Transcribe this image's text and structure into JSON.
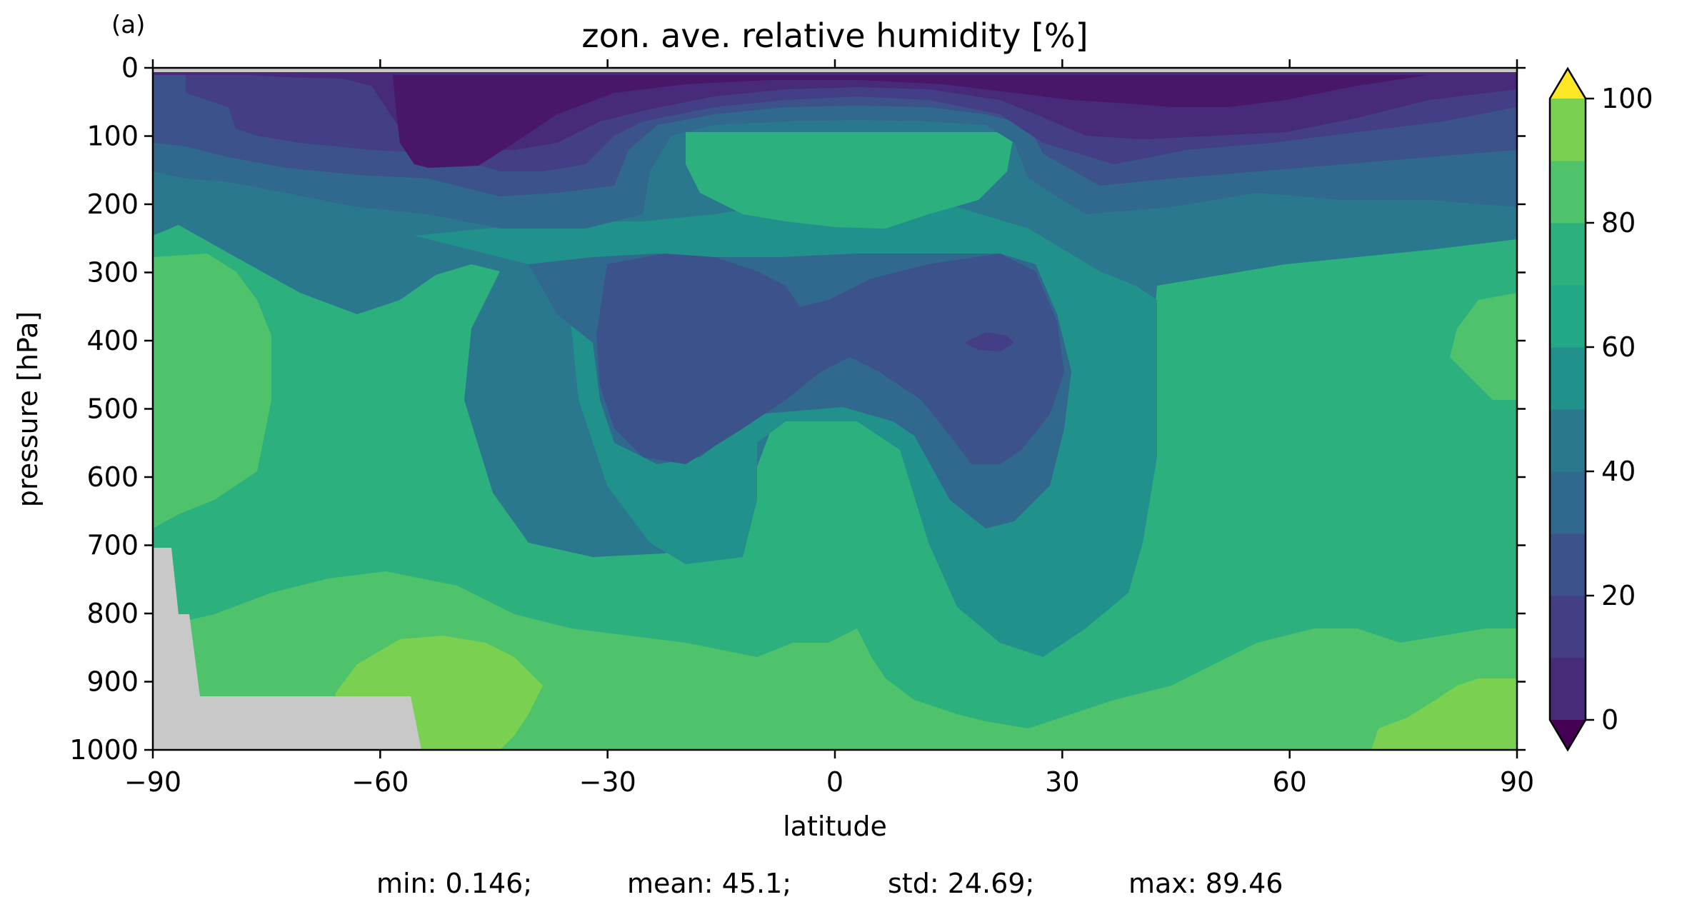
{
  "panel_label": "(a)",
  "chart_data": {
    "type": "heatmap",
    "title": "zon. ave. relative humidity [%]",
    "xlabel": "latitude",
    "ylabel": "pressure [hPa]",
    "xlim": [
      -90,
      90
    ],
    "ylim": [
      1000,
      0
    ],
    "x_ticks": [
      -90,
      -60,
      -30,
      0,
      30,
      60,
      90
    ],
    "x_tick_labels": [
      "−90",
      "−60",
      "−30",
      "0",
      "30",
      "60",
      "90"
    ],
    "y_ticks": [
      0,
      100,
      200,
      300,
      400,
      500,
      600,
      700,
      800,
      900,
      1000
    ],
    "y_tick_labels": [
      "0",
      "100",
      "200",
      "300",
      "400",
      "500",
      "600",
      "700",
      "800",
      "900",
      "1000"
    ],
    "colorbar": {
      "levels": [
        0,
        10,
        20,
        30,
        40,
        50,
        60,
        70,
        80,
        90,
        100
      ],
      "tick_values": [
        0,
        20,
        40,
        60,
        80,
        100
      ],
      "tick_labels": [
        "0",
        "20",
        "40",
        "60",
        "80",
        "100"
      ],
      "extend": "both",
      "colors": [
        "#481769",
        "#472a7a",
        "#433e85",
        "#3b528b",
        "#31688e",
        "#2a788e",
        "#21918c",
        "#22a884",
        "#2cb17e",
        "#4ec36b",
        "#7ad151",
        "#c2df23",
        "#fde725"
      ],
      "under_color": "#440154",
      "over_color": "#fde725"
    },
    "missing_color": "#c8c8c8",
    "band_colors": {
      "b0": "#481769",
      "b10": "#472a7a",
      "b20": "#433e85",
      "b30": "#3b528b",
      "b40": "#31688e",
      "b50": "#2a788e",
      "b60": "#21918c",
      "b70": "#2cb17e",
      "b80": "#4ec36b",
      "b90": "#7ad151"
    },
    "stats": {
      "min": "min: 0.146;",
      "mean": "mean: 45.1;",
      "std": "std: 24.69;",
      "max": "max: 89.46"
    }
  }
}
